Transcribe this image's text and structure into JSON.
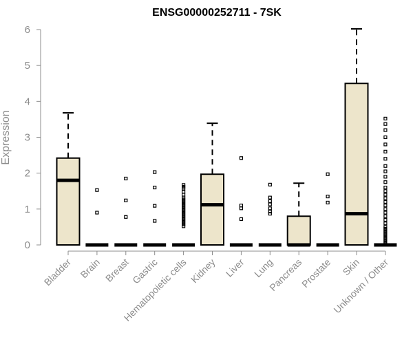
{
  "chart_data": {
    "type": "box",
    "title": "ENSG00000252711 - 7SK",
    "xlabel": "",
    "ylabel": "Expression",
    "ylim": [
      0,
      6
    ],
    "yticks": [
      "0",
      "1",
      "2",
      "3",
      "4",
      "5",
      "6"
    ],
    "colors": {
      "box_fill": "#ede5cb",
      "stroke": "#000000",
      "axis_text": "#8c8c8c"
    },
    "categories": [
      "Bladder",
      "Brain",
      "Breast",
      "Gastric",
      "Hematopoietic cells",
      "Kidney",
      "Liver",
      "Lung",
      "Pancreas",
      "Prostate",
      "Skin",
      "Unknown / Other"
    ],
    "boxes": [
      {
        "category": "Bladder",
        "q1": 0,
        "median": 1.8,
        "q3": 2.42,
        "whisker_low": 0,
        "whisker_high": 3.68,
        "outliers": []
      },
      {
        "category": "Brain",
        "q1": 0,
        "median": 0,
        "q3": 0,
        "whisker_low": 0,
        "whisker_high": 0,
        "outliers": [
          0.9,
          1.53
        ]
      },
      {
        "category": "Breast",
        "q1": 0,
        "median": 0,
        "q3": 0,
        "whisker_low": 0,
        "whisker_high": 0,
        "outliers": [
          0.78,
          1.24,
          1.85
        ]
      },
      {
        "category": "Gastric",
        "q1": 0,
        "median": 0,
        "q3": 0,
        "whisker_low": 0,
        "whisker_high": 0,
        "outliers": [
          0.67,
          1.09,
          1.6,
          2.03
        ]
      },
      {
        "category": "Hematopoietic cells",
        "q1": 0,
        "median": 0,
        "q3": 0,
        "whisker_low": 0,
        "whisker_high": 0,
        "outliers": [
          0.52,
          0.57,
          0.62,
          0.67,
          0.72,
          0.77,
          0.82,
          0.87,
          0.92,
          0.97,
          1.02,
          1.07,
          1.12,
          1.17,
          1.22,
          1.27,
          1.32,
          1.4,
          1.48,
          1.57,
          1.62,
          1.67
        ]
      },
      {
        "category": "Kidney",
        "q1": 0,
        "median": 1.12,
        "q3": 1.97,
        "whisker_low": 0,
        "whisker_high": 3.39,
        "outliers": []
      },
      {
        "category": "Liver",
        "q1": 0,
        "median": 0,
        "q3": 0,
        "whisker_low": 0,
        "whisker_high": 0,
        "outliers": [
          0.72,
          1.02,
          1.1,
          2.42
        ]
      },
      {
        "category": "Lung",
        "q1": 0,
        "median": 0,
        "q3": 0,
        "whisker_low": 0,
        "whisker_high": 0,
        "outliers": [
          0.87,
          0.93,
          1.02,
          1.13,
          1.22,
          1.32,
          1.68
        ]
      },
      {
        "category": "Pancreas",
        "q1": 0,
        "median": 0,
        "q3": 0.8,
        "whisker_low": 0,
        "whisker_high": 1.72,
        "outliers": []
      },
      {
        "category": "Prostate",
        "q1": 0,
        "median": 0,
        "q3": 0,
        "whisker_low": 0,
        "whisker_high": 0,
        "outliers": [
          1.18,
          1.35,
          1.97
        ]
      },
      {
        "category": "Skin",
        "q1": 0,
        "median": 0.87,
        "q3": 4.5,
        "whisker_low": 0,
        "whisker_high": 6.02,
        "outliers": []
      },
      {
        "category": "Unknown / Other",
        "q1": 0,
        "median": 0,
        "q3": 0,
        "whisker_low": 0,
        "whisker_high": 0,
        "outliers": [
          0.05,
          0.1,
          0.15,
          0.2,
          0.25,
          0.3,
          0.35,
          0.4,
          0.45,
          0.5,
          0.6,
          0.7,
          0.8,
          0.9,
          1.0,
          1.1,
          1.2,
          1.3,
          1.4,
          1.5,
          1.6,
          1.75,
          1.9,
          2.05,
          2.2,
          2.4,
          2.6,
          2.8,
          3.0,
          3.2,
          3.37,
          3.52
        ]
      }
    ]
  }
}
